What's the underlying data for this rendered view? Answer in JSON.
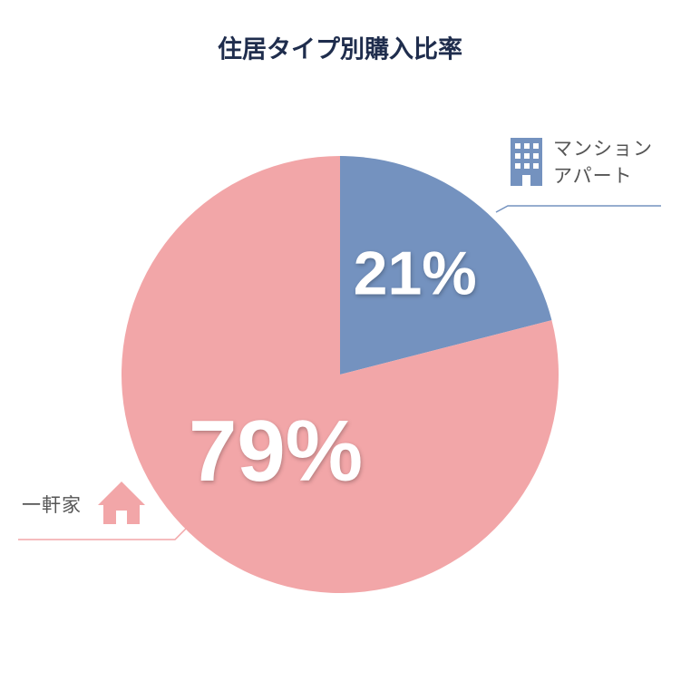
{
  "chart_data": {
    "type": "pie",
    "title": "住居タイプ別購入比率",
    "categories": [
      "マンション\nアパート",
      "一軒家"
    ],
    "values": [
      21,
      79
    ],
    "value_labels": [
      "21%",
      "79%"
    ],
    "colors": [
      "#7492bf",
      "#f2a6a8"
    ]
  }
}
